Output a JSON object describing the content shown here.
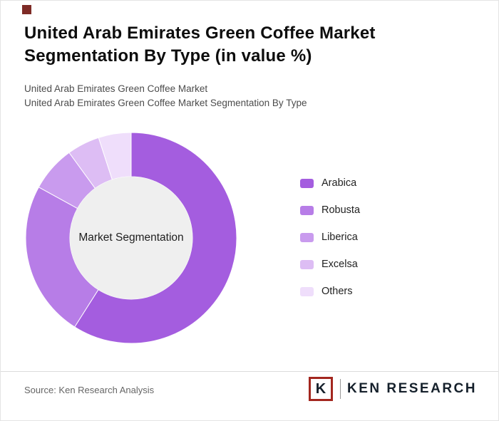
{
  "accent_color": "#7e2b26",
  "title": "United Arab Emirates Green Coffee Market Segmentation By Type (in value %)",
  "subtitle_line1": "United Arab Emirates Green Coffee Market",
  "subtitle_line2": "United Arab Emirates Green Coffee Market Segmentation By Type",
  "chart_data": {
    "type": "pie",
    "subtype": "donut",
    "title": "United Arab Emirates Green Coffee Market Segmentation By Type (in value %)",
    "center_label": "Market Segmentation",
    "legend_position": "right",
    "unit": "value %",
    "labels": [
      "Arabica",
      "Robusta",
      "Liberica",
      "Excelsa",
      "Others"
    ],
    "values": [
      59,
      24,
      7,
      5,
      5
    ],
    "colors": [
      "#a45ddf",
      "#b77de7",
      "#c99bee",
      "#ddbdf4",
      "#efdefb"
    ],
    "center_fill": "#efefef",
    "start_angle": 0,
    "direction": "clockwise"
  },
  "footer": {
    "source": "Source: Ken Research Analysis",
    "logo": {
      "k": "K",
      "text": "KEN RESEARCH",
      "border_color": "#a3271f"
    }
  }
}
